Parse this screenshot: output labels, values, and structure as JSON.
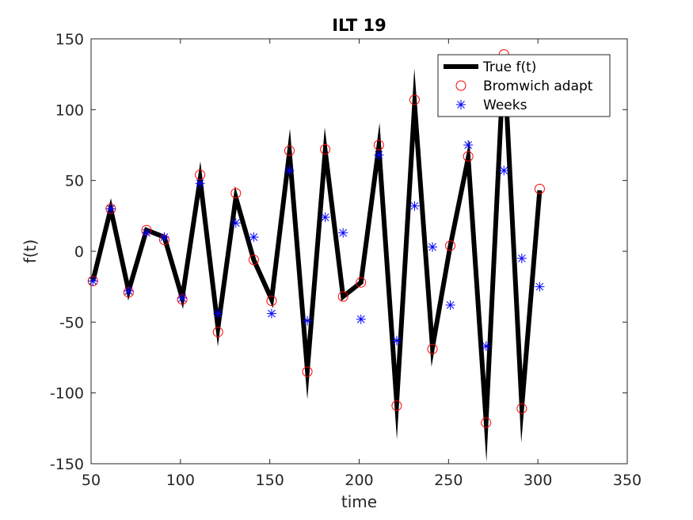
{
  "chart_data": {
    "type": "line",
    "title": "ILT 19",
    "xlabel": "time",
    "ylabel": "f(t)",
    "xlim": [
      50,
      350
    ],
    "ylim": [
      -150,
      150
    ],
    "xticks": [
      50,
      100,
      150,
      200,
      250,
      300,
      350
    ],
    "yticks": [
      -150,
      -100,
      -50,
      0,
      50,
      100,
      150
    ],
    "xtick_labels": [
      "50",
      "100",
      "150",
      "200",
      "250",
      "300",
      "350"
    ],
    "ytick_labels": [
      "-150",
      "-100",
      "-50",
      "0",
      "50",
      "100",
      "150"
    ],
    "grid": false,
    "legend_position": "top-right",
    "x": [
      51,
      61,
      71,
      81,
      91,
      101,
      111,
      121,
      131,
      141,
      151,
      161,
      171,
      181,
      191,
      201,
      211,
      221,
      231,
      241,
      251,
      261,
      271,
      281,
      291,
      301
    ],
    "series": [
      {
        "name": "True f(t)",
        "style": "line",
        "color": "#000000",
        "values": [
          -21,
          30,
          -28,
          15,
          10,
          -33,
          51,
          -54,
          38,
          -6,
          -34,
          70,
          -84,
          71,
          -32,
          -22,
          74,
          -107,
          104,
          -68,
          4,
          66,
          -120,
          138,
          -110,
          43
        ]
      },
      {
        "name": "Bromwich adapt",
        "style": "circle",
        "color": "#ff0000",
        "values": [
          -21,
          30,
          -29,
          15,
          8,
          -34,
          54,
          -57,
          41,
          -6,
          -35,
          71,
          -85,
          72,
          -32,
          -22,
          75,
          -109,
          107,
          -69,
          4,
          67,
          -121,
          139,
          -111,
          44
        ]
      },
      {
        "name": "Weeks",
        "style": "asterisk",
        "color": "#0000ff",
        "values": [
          -21,
          30,
          -28,
          13,
          10,
          -33,
          48,
          -44,
          20,
          10,
          -44,
          57,
          -49,
          24,
          13,
          -48,
          68,
          -63,
          32,
          3,
          -38,
          75,
          -67,
          57,
          -5,
          -25
        ]
      }
    ]
  }
}
